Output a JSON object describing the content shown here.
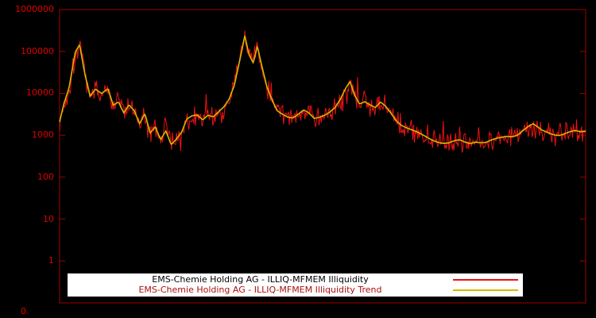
{
  "chart_data": {
    "type": "line",
    "title": "",
    "xlabel": "",
    "ylabel": "",
    "x_tick_labels": [],
    "y_scale": "log",
    "ylim": [
      0.1,
      1000000
    ],
    "y_ticks": [
      "1000000",
      "100000",
      "10000",
      "1000",
      "100",
      "10",
      "1"
    ],
    "y_tick_values": [
      1000000,
      100000,
      10000,
      1000,
      100,
      10,
      1
    ],
    "corner_label": "0.",
    "grid": false,
    "background_color": "#000000",
    "frame_color": "#a00000",
    "tick_label_color": "#e00000",
    "legend_position": "bottom-center",
    "series": [
      {
        "name": "EMS-Chemie Holding AG - ILLIQ-MFMEM Illiquidity",
        "color": "#ee1111",
        "style": "noisy",
        "noise_amplitude_log10": 0.3,
        "noise_seed": 1337,
        "points": 640
      },
      {
        "name": "EMS-Chemie Holding AG - ILLIQ-MFMEM Illiquidity Trend",
        "color": "#d8b800",
        "style": "trend"
      }
    ],
    "trend_keypoints": [
      [
        0.0,
        2000
      ],
      [
        0.008,
        5000
      ],
      [
        0.018,
        12000
      ],
      [
        0.03,
        90000
      ],
      [
        0.038,
        140000
      ],
      [
        0.048,
        30000
      ],
      [
        0.058,
        9000
      ],
      [
        0.068,
        13000
      ],
      [
        0.08,
        9500
      ],
      [
        0.092,
        12000
      ],
      [
        0.102,
        5000
      ],
      [
        0.112,
        6500
      ],
      [
        0.122,
        3800
      ],
      [
        0.132,
        6000
      ],
      [
        0.142,
        4200
      ],
      [
        0.152,
        1900
      ],
      [
        0.162,
        3200
      ],
      [
        0.172,
        1100
      ],
      [
        0.182,
        1600
      ],
      [
        0.192,
        850
      ],
      [
        0.202,
        1400
      ],
      [
        0.212,
        640
      ],
      [
        0.222,
        800
      ],
      [
        0.232,
        1100
      ],
      [
        0.242,
        2200
      ],
      [
        0.252,
        2700
      ],
      [
        0.262,
        3000
      ],
      [
        0.272,
        2400
      ],
      [
        0.282,
        3100
      ],
      [
        0.292,
        2700
      ],
      [
        0.302,
        3300
      ],
      [
        0.312,
        4200
      ],
      [
        0.322,
        6500
      ],
      [
        0.332,
        15000
      ],
      [
        0.342,
        60000
      ],
      [
        0.352,
        260000
      ],
      [
        0.36,
        90000
      ],
      [
        0.368,
        55000
      ],
      [
        0.376,
        130000
      ],
      [
        0.384,
        45000
      ],
      [
        0.394,
        14000
      ],
      [
        0.404,
        7000
      ],
      [
        0.414,
        4200
      ],
      [
        0.424,
        3600
      ],
      [
        0.434,
        3000
      ],
      [
        0.444,
        2700
      ],
      [
        0.454,
        3100
      ],
      [
        0.464,
        3800
      ],
      [
        0.474,
        3300
      ],
      [
        0.484,
        2600
      ],
      [
        0.494,
        2900
      ],
      [
        0.504,
        3200
      ],
      [
        0.514,
        3600
      ],
      [
        0.524,
        4300
      ],
      [
        0.534,
        6500
      ],
      [
        0.544,
        12000
      ],
      [
        0.552,
        18000
      ],
      [
        0.56,
        9500
      ],
      [
        0.57,
        5800
      ],
      [
        0.58,
        6500
      ],
      [
        0.59,
        5200
      ],
      [
        0.6,
        4200
      ],
      [
        0.61,
        5600
      ],
      [
        0.62,
        4600
      ],
      [
        0.63,
        3400
      ],
      [
        0.64,
        2400
      ],
      [
        0.65,
        1900
      ],
      [
        0.66,
        1600
      ],
      [
        0.67,
        1350
      ],
      [
        0.68,
        1150
      ],
      [
        0.69,
        1000
      ],
      [
        0.7,
        900
      ],
      [
        0.71,
        820
      ],
      [
        0.72,
        760
      ],
      [
        0.73,
        700
      ],
      [
        0.74,
        670
      ],
      [
        0.75,
        700
      ],
      [
        0.76,
        720
      ],
      [
        0.77,
        660
      ],
      [
        0.78,
        640
      ],
      [
        0.79,
        720
      ],
      [
        0.8,
        690
      ],
      [
        0.81,
        660
      ],
      [
        0.82,
        700
      ],
      [
        0.83,
        740
      ],
      [
        0.84,
        800
      ],
      [
        0.85,
        900
      ],
      [
        0.86,
        950
      ],
      [
        0.87,
        1050
      ],
      [
        0.88,
        1300
      ],
      [
        0.89,
        1550
      ],
      [
        0.9,
        1750
      ],
      [
        0.908,
        1500
      ],
      [
        0.916,
        1300
      ],
      [
        0.924,
        1250
      ],
      [
        0.932,
        1200
      ],
      [
        0.94,
        1150
      ],
      [
        0.95,
        1100
      ],
      [
        0.96,
        1150
      ],
      [
        0.97,
        1200
      ],
      [
        0.98,
        1250
      ],
      [
        0.99,
        1200
      ],
      [
        1.0,
        1300
      ]
    ],
    "legend": [
      {
        "label": "EMS-Chemie Holding AG - ILLIQ-MFMEM Illiquidity",
        "line_color": "#ee1111",
        "text_color": "#000000"
      },
      {
        "label": "EMS-Chemie Holding AG - ILLIQ-MFMEM Illiquidity Trend",
        "line_color": "#d8b800",
        "text_color": "#aa1111"
      }
    ]
  }
}
